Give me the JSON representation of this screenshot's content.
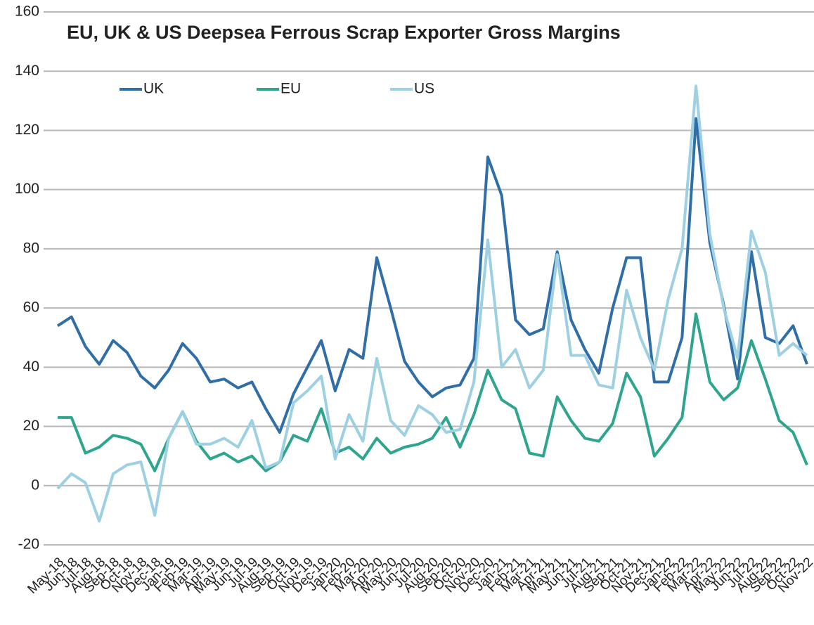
{
  "chart_data": {
    "type": "line",
    "title": "EU, UK & US Deepsea Ferrous Scrap Exporter Gross Margins",
    "categories": [
      "May-18",
      "Jun-18",
      "Jul-18",
      "Aug-18",
      "Sep-18",
      "Oct-18",
      "Nov-18",
      "Dec-18",
      "Jan-19",
      "Feb-19",
      "Mar-19",
      "Apr-19",
      "May-19",
      "Jun-19",
      "Jul-19",
      "Aug-19",
      "Sep-19",
      "Oct-19",
      "Nov-19",
      "Dec-19",
      "Jan-20",
      "Feb-20",
      "Mar-20",
      "Apr-20",
      "May-20",
      "Jun-20",
      "Jul-20",
      "Aug-20",
      "Sep-20",
      "Oct-20",
      "Nov-20",
      "Dec-20",
      "Jan-21",
      "Feb-21",
      "Mar-21",
      "Apr-21",
      "May-21",
      "Jun-21",
      "Jul-21",
      "Aug-21",
      "Sep-21",
      "Oct-21",
      "Nov-21",
      "Dec-21",
      "Jan-22",
      "Feb-22",
      "Mar-22",
      "Apr-22",
      "May-22",
      "Jun-22",
      "Jul-22",
      "Aug-22",
      "Sep-22",
      "Oct-22",
      "Nov-22"
    ],
    "series": [
      {
        "name": "UK",
        "color": "#2f6ea7",
        "values": [
          54,
          57,
          47,
          41,
          49,
          45,
          37,
          33,
          39,
          48,
          43,
          35,
          36,
          33,
          35,
          26,
          18,
          31,
          40,
          49,
          32,
          46,
          43,
          77,
          60,
          42,
          35,
          30,
          33,
          34,
          43,
          111,
          98,
          56,
          51,
          53,
          79,
          56,
          46,
          38,
          60,
          77,
          77,
          35,
          35,
          50,
          124,
          82,
          61,
          36,
          79,
          50,
          48,
          54,
          41
        ]
      },
      {
        "name": "EU",
        "color": "#2ea58e",
        "values": [
          23,
          23,
          11,
          13,
          17,
          16,
          14,
          5,
          16,
          25,
          15,
          9,
          11,
          8,
          10,
          5,
          8,
          17,
          15,
          26,
          11,
          13,
          9,
          16,
          11,
          13,
          14,
          16,
          23,
          13,
          24,
          39,
          29,
          26,
          11,
          10,
          30,
          22,
          16,
          15,
          21,
          38,
          30,
          10,
          16,
          23,
          58,
          35,
          29,
          33,
          49,
          36,
          22,
          18,
          7
        ]
      },
      {
        "name": "US",
        "color": "#9dd0e2",
        "values": [
          -1,
          4,
          1,
          -12,
          4,
          7,
          8,
          -10,
          16,
          25,
          14,
          14,
          16,
          13,
          22,
          6,
          8,
          28,
          32,
          37,
          9,
          24,
          15,
          43,
          22,
          17,
          27,
          24,
          18,
          19,
          35,
          83,
          40,
          46,
          33,
          39,
          78,
          44,
          44,
          34,
          33,
          66,
          50,
          39,
          63,
          80,
          135,
          85,
          60,
          43,
          86,
          72,
          44,
          48,
          44
        ]
      }
    ],
    "ylim": [
      -20,
      160
    ],
    "yticks": [
      -20,
      0,
      20,
      40,
      60,
      80,
      100,
      120,
      140,
      160
    ],
    "grid": true,
    "legend": "top"
  }
}
